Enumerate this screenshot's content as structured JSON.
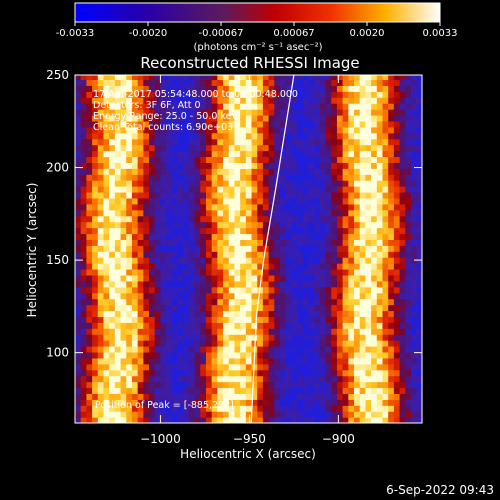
{
  "colorbar": {
    "tick_labels": [
      "-0.0033",
      "-0.0020",
      "-0.00067",
      "0.00067",
      "0.0020",
      "0.0033"
    ],
    "range": [
      -0.0033,
      0.0033
    ],
    "unit_label": "(photons cm⁻² s⁻¹ asec⁻²)"
  },
  "chart_data": {
    "type": "heatmap",
    "title": "Reconstructed RHESSI Image",
    "xlabel": "Heliocentric X (arcsec)",
    "ylabel": "Heliocentric Y (arcsec)",
    "xlim": [
      -1048,
      -853
    ],
    "ylim": [
      62,
      250
    ],
    "x_ticks": [
      -1000,
      -950,
      -900
    ],
    "x_tick_labels": [
      "−1000",
      "−950",
      "−900"
    ],
    "y_ticks": [
      100,
      150,
      200,
      250
    ],
    "y_tick_labels": [
      "100",
      "150",
      "200",
      "250"
    ],
    "colormap": "RHESSI red-temperature (blue → purple → red → orange → yellow → white)",
    "pattern": "vertical bright stripes (modulation pattern)",
    "bright_stripe_centers_x": [
      -1026,
      -958,
      -885
    ],
    "limb_curve": [
      {
        "x": -949,
        "y": 62
      },
      {
        "x": -946,
        "y": 120
      },
      {
        "x": -942,
        "y": 150
      },
      {
        "x": -935,
        "y": 190
      },
      {
        "x": -925,
        "y": 250
      }
    ],
    "annotations": [
      "17-Apr-2017 05:54:48.000 to 06:00:48.000",
      "Detectors: 3F 6F, Att 0",
      "Energy Range: 25.0 - 50.0 keV",
      "Clean     Total counts: 6.90e+03",
      "Position of Peak = [-885,232]"
    ],
    "grid": false,
    "legend": "colorbar top"
  },
  "footer": {
    "timestamp": "6-Sep-2022 09:43"
  }
}
